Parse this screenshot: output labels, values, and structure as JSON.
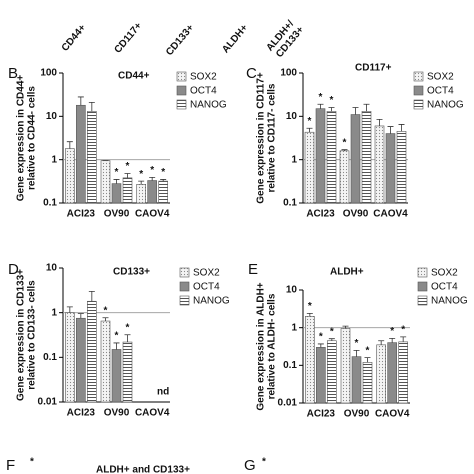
{
  "header_labels": [
    "CD44+",
    "CD117+",
    "CD133+",
    "ALDH+",
    "ALDH+/",
    "CD133+"
  ],
  "chart_data": [
    {
      "type": "bar",
      "panel": "B",
      "title": "CD44+",
      "ylabel": [
        "Gene expression in CD44+",
        "relative to CD44- cells"
      ],
      "log": true,
      "ylim": [
        0.1,
        100
      ],
      "yticks": [
        0.1,
        1,
        10,
        100
      ],
      "hline": 1,
      "categories": [
        "ACI23",
        "OV90",
        "CAOV4"
      ],
      "series": [
        {
          "name": "SOX2",
          "color": "#dcdcdc",
          "pattern": "dots",
          "values": [
            1.8,
            0.95,
            0.27
          ],
          "errors": [
            0.8,
            0,
            0.05
          ],
          "significance": [
            null,
            null,
            "*"
          ]
        },
        {
          "name": "OCT4",
          "color": "#8a8a8a",
          "pattern": "solid",
          "values": [
            18,
            0.28,
            0.33
          ],
          "errors": [
            10,
            0.07,
            0.06
          ],
          "significance": [
            null,
            "*",
            "*"
          ]
        },
        {
          "name": "NANOG",
          "color": "#ffffff",
          "pattern": "stripes",
          "values": [
            13,
            0.38,
            0.32
          ],
          "errors": [
            8,
            0.1,
            0.03
          ],
          "significance": [
            null,
            "*",
            "*"
          ]
        }
      ]
    },
    {
      "type": "bar",
      "panel": "C",
      "title": "CD117+",
      "ylabel": [
        "Gene expression in CD117+",
        "relative to CD117- cells"
      ],
      "log": true,
      "ylim": [
        0.1,
        100
      ],
      "yticks": [
        0.1,
        1,
        10,
        100
      ],
      "hline": 1,
      "categories": [
        "ACI23",
        "OV90",
        "CAOV4"
      ],
      "series": [
        {
          "name": "SOX2",
          "color": "#dcdcdc",
          "pattern": "dots",
          "values": [
            4.3,
            1.6,
            6
          ],
          "errors": [
            1,
            0.1,
            2.5
          ],
          "significance": [
            "*",
            "*",
            null
          ]
        },
        {
          "name": "OCT4",
          "color": "#8a8a8a",
          "pattern": "solid",
          "values": [
            15,
            11,
            4
          ],
          "errors": [
            4,
            5,
            1.8
          ],
          "significance": [
            "*",
            null,
            null
          ]
        },
        {
          "name": "NANOG",
          "color": "#ffffff",
          "pattern": "stripes",
          "values": [
            13,
            13,
            4.5
          ],
          "errors": [
            3,
            6,
            2
          ],
          "significance": [
            "*",
            null,
            null
          ]
        }
      ]
    },
    {
      "type": "bar",
      "panel": "D",
      "title": "CD133+",
      "ylabel": [
        "Gene expression in CD133+",
        "relative to CD133- cells"
      ],
      "log": true,
      "ylim": [
        0.01,
        10
      ],
      "yticks": [
        0.01,
        0.1,
        1,
        10
      ],
      "hline": 1,
      "categories": [
        "ACI23",
        "OV90",
        "CAOV4"
      ],
      "series": [
        {
          "name": "SOX2",
          "color": "#dcdcdc",
          "pattern": "dots",
          "values": [
            1.0,
            0.65,
            null
          ],
          "errors": [
            0.35,
            0.12,
            null
          ],
          "significance": [
            null,
            "*",
            null
          ]
        },
        {
          "name": "OCT4",
          "color": "#8a8a8a",
          "pattern": "solid",
          "values": [
            0.75,
            0.15,
            null
          ],
          "errors": [
            0.2,
            0.06,
            null
          ],
          "significance": [
            null,
            "*",
            null
          ]
        },
        {
          "name": "NANOG",
          "color": "#ffffff",
          "pattern": "stripes",
          "values": [
            1.8,
            0.22,
            null
          ],
          "errors": [
            1.2,
            0.1,
            null
          ],
          "significance": [
            null,
            "*",
            "nd"
          ]
        }
      ]
    },
    {
      "type": "bar",
      "panel": "E",
      "title": "ALDH+",
      "ylabel": [
        "Gene expression in ALDH+",
        "relative to ALDH- cells"
      ],
      "log": true,
      "ylim": [
        0.01,
        10
      ],
      "yticks": [
        0.01,
        0.1,
        1,
        10
      ],
      "hline": 1,
      "categories": [
        "ACI23",
        "OV90",
        "CAOV4"
      ],
      "series": [
        {
          "name": "SOX2",
          "color": "#dcdcdc",
          "pattern": "dots",
          "values": [
            2.0,
            0.95,
            0.35
          ],
          "errors": [
            0.4,
            0.15,
            0.1
          ],
          "significance": [
            "*",
            null,
            null
          ]
        },
        {
          "name": "OCT4",
          "color": "#8a8a8a",
          "pattern": "solid",
          "values": [
            0.3,
            0.17,
            0.4
          ],
          "errors": [
            0.07,
            0.08,
            0.12
          ],
          "significance": [
            "*",
            "*",
            "*"
          ]
        },
        {
          "name": "NANOG",
          "color": "#ffffff",
          "pattern": "stripes",
          "values": [
            0.45,
            0.12,
            0.42
          ],
          "errors": [
            0.06,
            0.04,
            0.15
          ],
          "significance": [
            "*",
            "*",
            "*"
          ]
        }
      ]
    }
  ],
  "panel_F": {
    "letter": "F",
    "title": "ALDH+ and CD133+",
    "mark": "*"
  },
  "panel_G": {
    "letter": "G",
    "mark": "*"
  }
}
